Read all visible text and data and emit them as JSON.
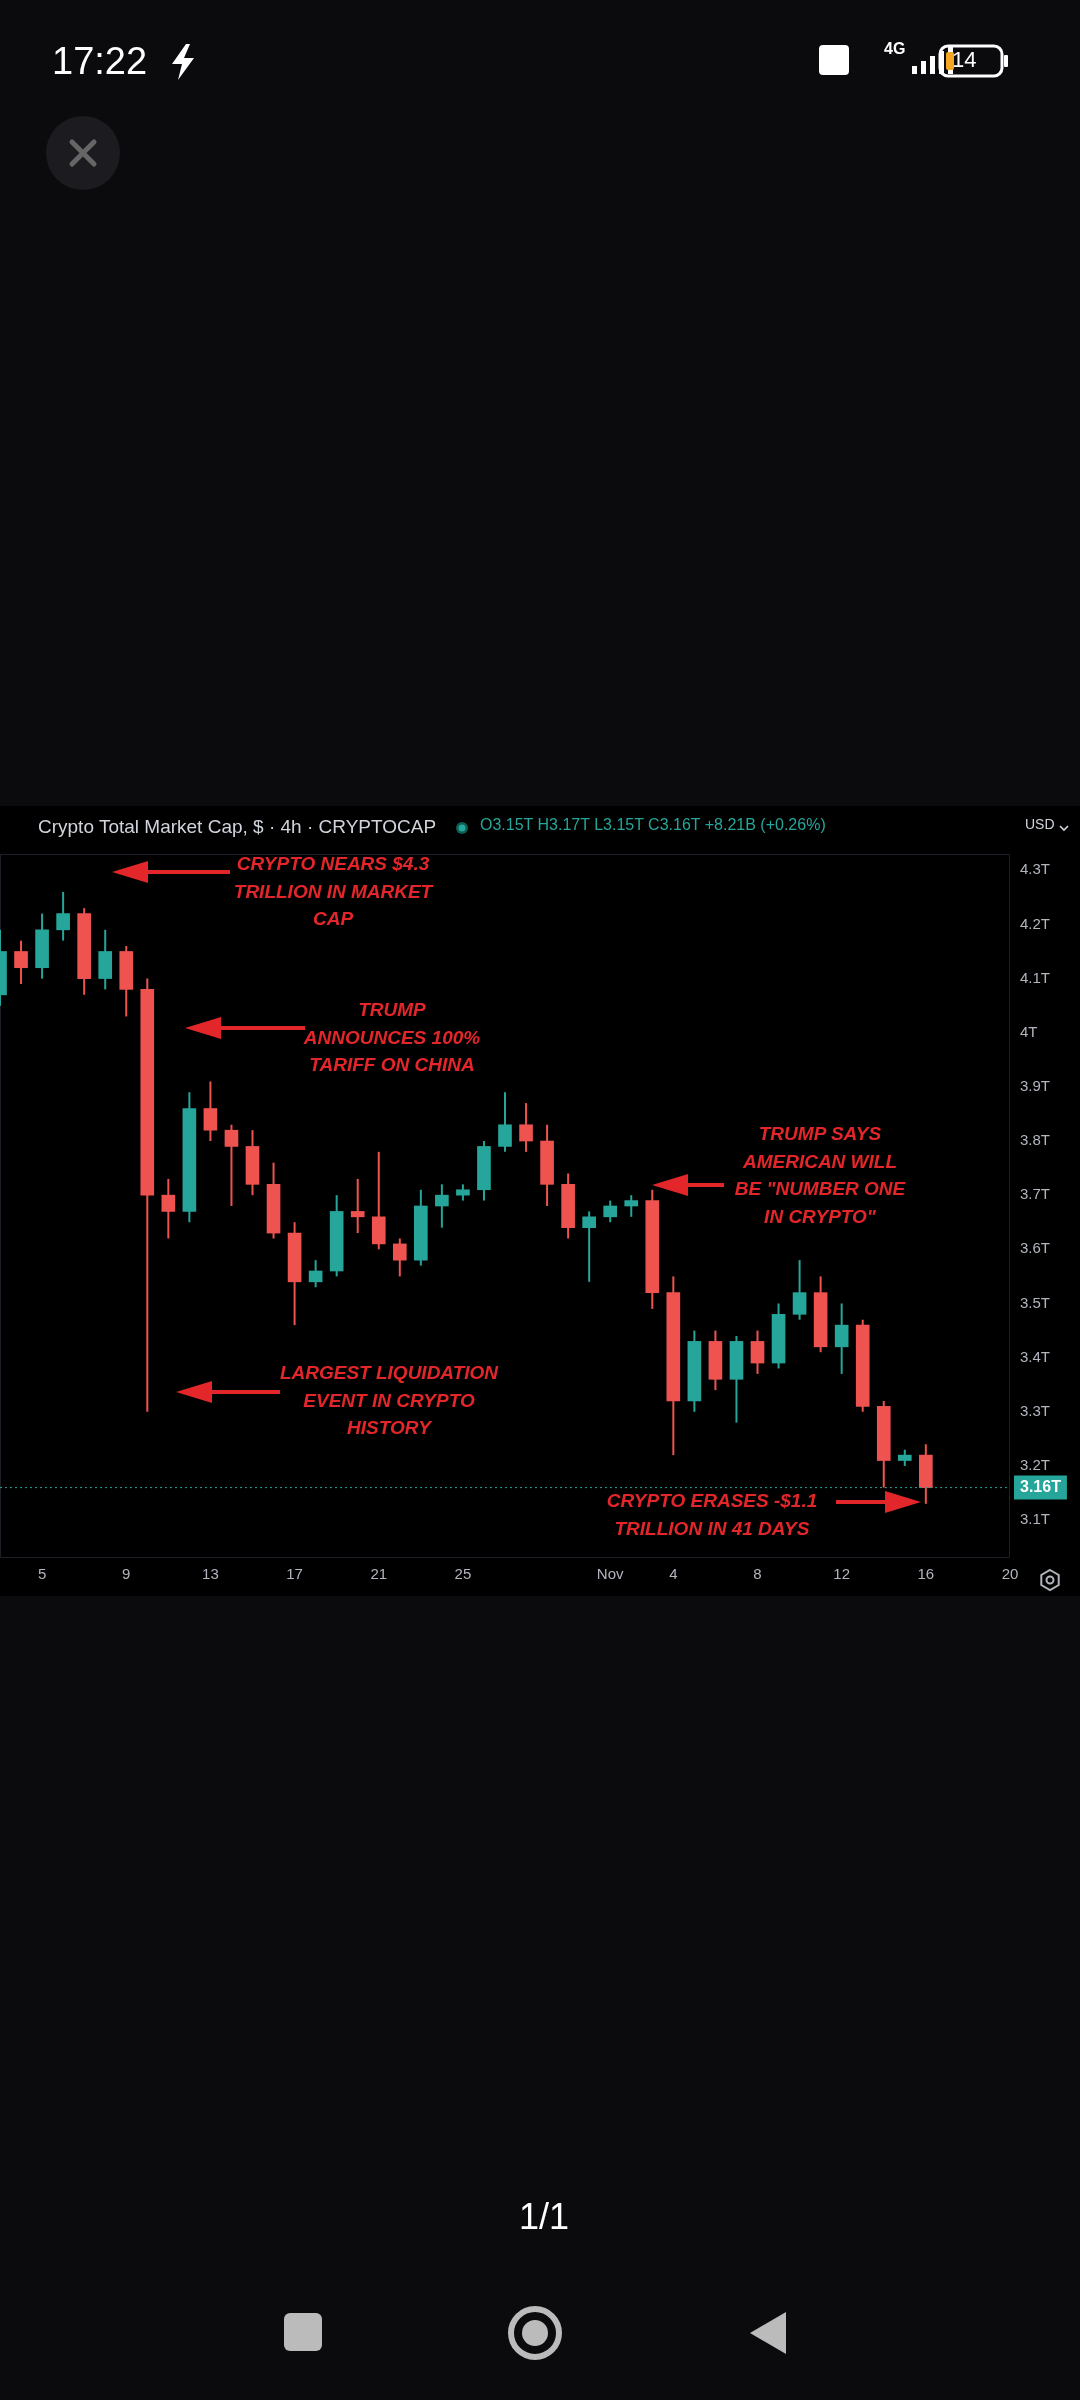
{
  "chart_data": {
    "type": "candlestick",
    "title": "Crypto Total Market Cap, $ · 4h · CRYPTOCAP",
    "x": [
      "--10-03",
      "--10-04",
      "--10-05",
      "--10-06",
      "--10-07",
      "--10-08",
      "--10-09",
      "--10-10",
      "--10-11",
      "--10-12",
      "--10-13",
      "--10-14",
      "--10-15",
      "--10-16",
      "--10-17",
      "--10-18",
      "--10-19",
      "--10-20",
      "--10-21",
      "--10-22",
      "--10-23",
      "--10-24",
      "--10-25",
      "--10-26",
      "--10-27",
      "--10-28",
      "--10-29",
      "--10-30",
      "--10-31",
      "--11-01",
      "--11-02",
      "--11-03",
      "--11-04",
      "--11-05",
      "--11-06",
      "--11-07",
      "--11-08",
      "--11-09",
      "--11-10",
      "--11-11",
      "--11-12",
      "--11-13",
      "--11-14",
      "--11-15",
      "--11-16"
    ],
    "ohlc": [
      [
        4.07,
        4.19,
        4.05,
        4.15
      ],
      [
        4.15,
        4.17,
        4.09,
        4.12
      ],
      [
        4.12,
        4.22,
        4.1,
        4.19
      ],
      [
        4.19,
        4.26,
        4.17,
        4.22
      ],
      [
        4.22,
        4.23,
        4.07,
        4.1
      ],
      [
        4.1,
        4.19,
        4.08,
        4.15
      ],
      [
        4.15,
        4.16,
        4.03,
        4.08
      ],
      [
        4.08,
        4.1,
        3.3,
        3.7
      ],
      [
        3.7,
        3.73,
        3.62,
        3.67
      ],
      [
        3.67,
        3.89,
        3.65,
        3.86
      ],
      [
        3.86,
        3.91,
        3.8,
        3.82
      ],
      [
        3.82,
        3.83,
        3.68,
        3.79
      ],
      [
        3.79,
        3.82,
        3.7,
        3.72
      ],
      [
        3.72,
        3.76,
        3.62,
        3.63
      ],
      [
        3.63,
        3.65,
        3.46,
        3.54
      ],
      [
        3.54,
        3.58,
        3.53,
        3.56
      ],
      [
        3.56,
        3.7,
        3.55,
        3.67
      ],
      [
        3.67,
        3.73,
        3.63,
        3.66
      ],
      [
        3.66,
        3.78,
        3.6,
        3.61
      ],
      [
        3.61,
        3.62,
        3.55,
        3.58
      ],
      [
        3.58,
        3.71,
        3.57,
        3.68
      ],
      [
        3.68,
        3.72,
        3.64,
        3.7
      ],
      [
        3.7,
        3.72,
        3.69,
        3.71
      ],
      [
        3.71,
        3.8,
        3.69,
        3.79
      ],
      [
        3.79,
        3.89,
        3.78,
        3.83
      ],
      [
        3.83,
        3.87,
        3.78,
        3.8
      ],
      [
        3.8,
        3.83,
        3.68,
        3.72
      ],
      [
        3.72,
        3.74,
        3.62,
        3.64
      ],
      [
        3.64,
        3.67,
        3.54,
        3.66
      ],
      [
        3.66,
        3.69,
        3.65,
        3.68
      ],
      [
        3.68,
        3.7,
        3.66,
        3.69
      ],
      [
        3.69,
        3.71,
        3.49,
        3.52
      ],
      [
        3.52,
        3.55,
        3.22,
        3.32
      ],
      [
        3.32,
        3.45,
        3.3,
        3.43
      ],
      [
        3.43,
        3.45,
        3.34,
        3.36
      ],
      [
        3.36,
        3.44,
        3.28,
        3.43
      ],
      [
        3.43,
        3.45,
        3.37,
        3.39
      ],
      [
        3.39,
        3.5,
        3.38,
        3.48
      ],
      [
        3.48,
        3.58,
        3.47,
        3.52
      ],
      [
        3.52,
        3.55,
        3.41,
        3.42
      ],
      [
        3.42,
        3.5,
        3.37,
        3.46
      ],
      [
        3.46,
        3.47,
        3.3,
        3.31
      ],
      [
        3.31,
        3.32,
        3.16,
        3.21
      ],
      [
        3.21,
        3.23,
        3.2,
        3.22
      ],
      [
        3.22,
        3.24,
        3.13,
        3.16
      ]
    ],
    "colors": [
      "#26a69a",
      "#ef5350",
      "#26a69a",
      "#26a69a",
      "#ef5350",
      "#26a69a",
      "#ef5350",
      "#ef5350",
      "#ef5350",
      "#26a69a",
      "#ef5350",
      "#ef5350",
      "#ef5350",
      "#ef5350",
      "#ef5350",
      "#26a69a",
      "#26a69a",
      "#ef5350",
      "#ef5350",
      "#ef5350",
      "#26a69a",
      "#26a69a",
      "#26a69a",
      "#26a69a",
      "#26a69a",
      "#ef5350",
      "#ef5350",
      "#ef5350",
      "#26a69a",
      "#26a69a",
      "#26a69a",
      "#ef5350",
      "#ef5350",
      "#26a69a",
      "#ef5350",
      "#26a69a",
      "#ef5350",
      "#26a69a",
      "#26a69a",
      "#ef5350",
      "#26a69a",
      "#ef5350",
      "#ef5350",
      "#26a69a",
      "#ef5350"
    ],
    "xlim": [
      "--10-03",
      "--11-20"
    ],
    "xticks": [
      {
        "value": "--10-05",
        "label": "5"
      },
      {
        "value": "--10-09",
        "label": "9"
      },
      {
        "value": "--10-13",
        "label": "13"
      },
      {
        "value": "--10-17",
        "label": "17"
      },
      {
        "value": "--10-21",
        "label": "21"
      },
      {
        "value": "--10-25",
        "label": "25"
      },
      {
        "value": "--11-01",
        "label": "Nov"
      },
      {
        "value": "--11-04",
        "label": "4"
      },
      {
        "value": "--11-08",
        "label": "8"
      },
      {
        "value": "--11-12",
        "label": "12"
      },
      {
        "value": "--11-16",
        "label": "16"
      },
      {
        "value": "--11-20",
        "label": "20"
      }
    ],
    "ylim": [
      3.03,
      4.33
    ],
    "yticks": [
      {
        "value": 3.1,
        "label": "3.1T"
      },
      {
        "value": 3.2,
        "label": "3.2T"
      },
      {
        "value": 3.3,
        "label": "3.3T"
      },
      {
        "value": 3.4,
        "label": "3.4T"
      },
      {
        "value": 3.5,
        "label": "3.5T"
      },
      {
        "value": 3.6,
        "label": "3.6T"
      },
      {
        "value": 3.7,
        "label": "3.7T"
      },
      {
        "value": 3.8,
        "label": "3.8T"
      },
      {
        "value": 3.9,
        "label": "3.9T"
      },
      {
        "value": 4.0,
        "label": "4T"
      },
      {
        "value": 4.1,
        "label": "4.1T"
      },
      {
        "value": 4.2,
        "label": "4.2T"
      },
      {
        "value": 4.3,
        "label": "4.3T"
      }
    ],
    "ref_lines": [
      {
        "axis": "y",
        "value": 3.16,
        "label": "3.16T",
        "color": "#26a69a",
        "line_style": "dotted"
      }
    ],
    "annotations": [
      "CRYPTO NEARS $4.3 TRILLION IN MARKET CAP",
      "TRUMP ANNOUNCES 100% TARIFF ON CHINA",
      "LARGEST LIQUIDATION EVENT IN CRYPTO HISTORY",
      "TRUMP SAYS AMERICAN WILL BE \"NUMBER ONE IN CRYPTO\"",
      "CRYPTO ERASES -$1.1 TRILLION IN 41 DAYS",
      "O3.15T H3.17T L3.15T C3.16T +8.21B (+0.26%)",
      "USD",
      "17:22",
      "4G",
      "14",
      "1/1"
    ]
  }
}
